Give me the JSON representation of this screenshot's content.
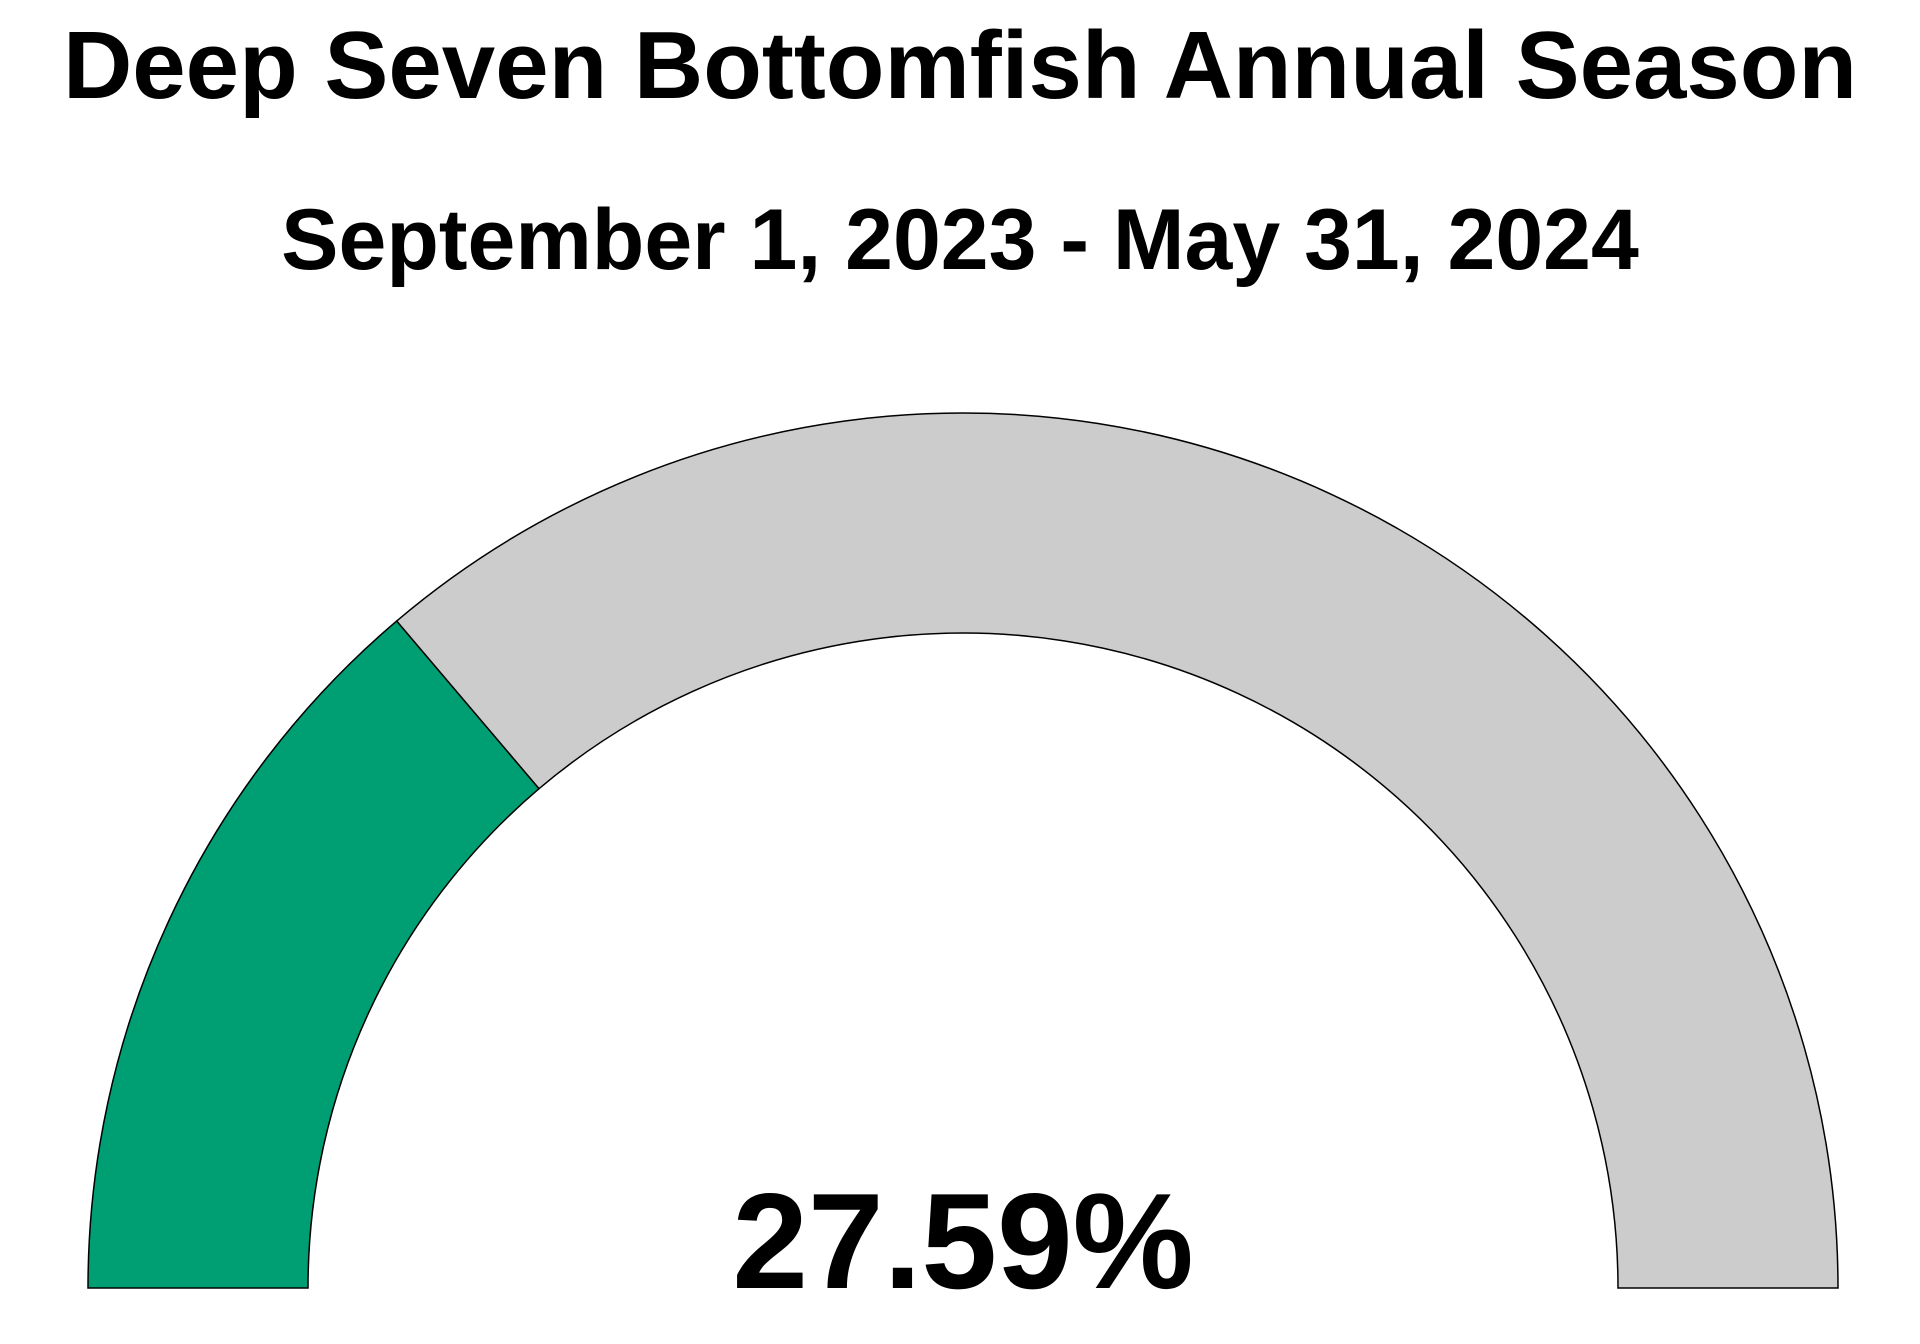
{
  "chart_data": {
    "type": "gauge",
    "title": "Deep Seven Bottomfish Annual Season",
    "subtitle": "September 1, 2023 - May 31, 2024",
    "value": 27.59,
    "min": 0,
    "max": 100,
    "value_label": "27.59%",
    "fill_color": "#009E73",
    "track_color": "#CCCCCC",
    "outline_color": "#000000"
  }
}
